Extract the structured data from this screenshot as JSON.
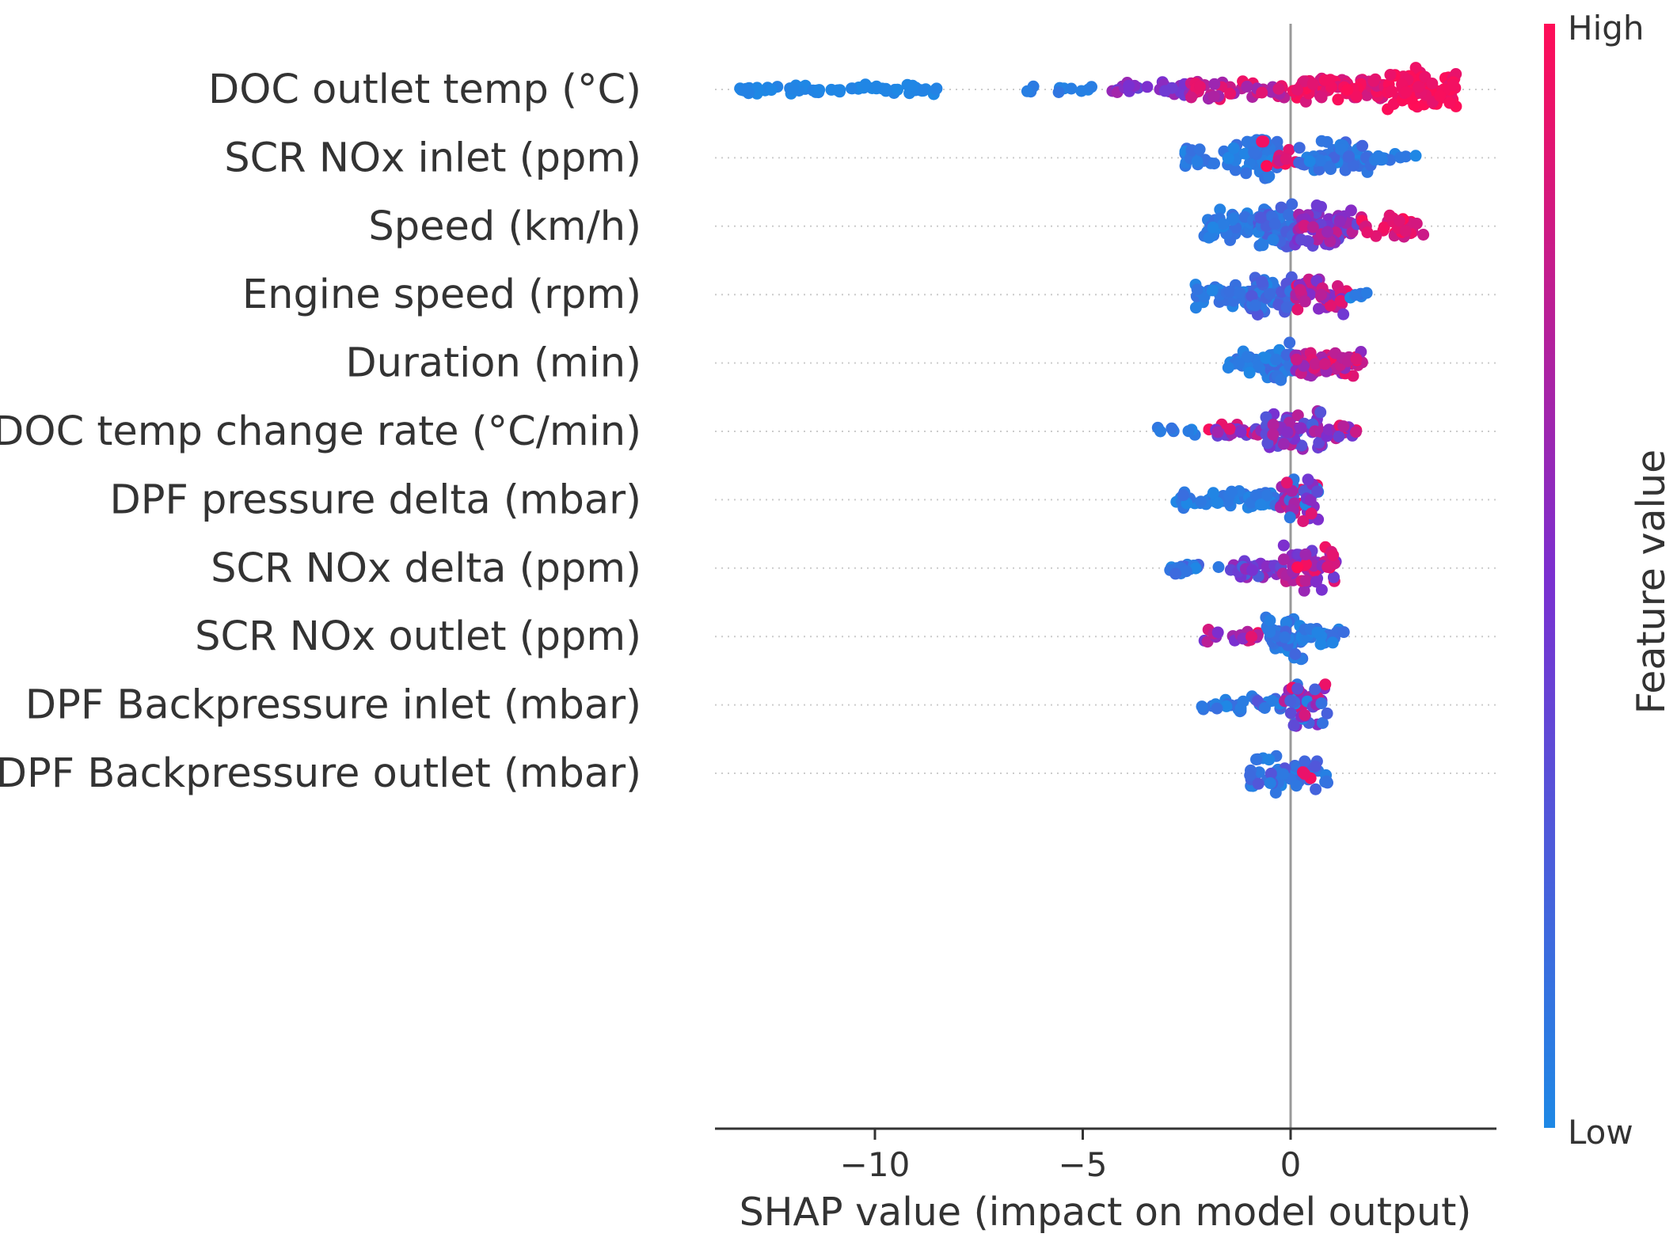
{
  "chart_data": {
    "type": "scatter",
    "subtype": "shap-beeswarm",
    "title": "",
    "xlabel": "SHAP value (impact on model output)",
    "ylabel": "",
    "xlim": [
      -14,
      5
    ],
    "xticks": [
      -10,
      -5,
      0
    ],
    "xtick_labels": [
      "−10",
      "−5",
      "0"
    ],
    "grid": false,
    "zero_line": 0,
    "colorbar": {
      "label": "Feature value",
      "high_label": "High",
      "low_label": "Low",
      "low_color": "#1e88e5",
      "mid_color": "#7b2fd0",
      "high_color": "#ff0d57"
    },
    "features": [
      {
        "name": "DOC outlet temp (°C)",
        "clusters": [
          {
            "min": -13.3,
            "max": -8.5,
            "n": 70,
            "spread": 0.2,
            "f": [
              0.0,
              0.04
            ]
          },
          {
            "min": -6.4,
            "max": -4.6,
            "n": 10,
            "spread": 0.15,
            "f": [
              0.02,
              0.1
            ]
          },
          {
            "min": -4.4,
            "max": -2.4,
            "n": 26,
            "spread": 0.35,
            "f": [
              0.35,
              0.7
            ]
          },
          {
            "min": -2.4,
            "max": -0.1,
            "n": 40,
            "spread": 0.45,
            "f": [
              0.55,
              0.95
            ]
          },
          {
            "min": -0.1,
            "max": 2.3,
            "n": 80,
            "spread": 0.55,
            "f": [
              0.8,
              1.0
            ]
          },
          {
            "min": 2.3,
            "max": 4.0,
            "n": 95,
            "spread": 0.85,
            "f": [
              0.9,
              1.0
            ]
          }
        ]
      },
      {
        "name": "SCR NOx inlet (ppm)",
        "clusters": [
          {
            "min": -2.6,
            "max": -1.1,
            "n": 30,
            "spread": 0.5,
            "f": [
              0.0,
              0.15
            ]
          },
          {
            "min": -1.1,
            "max": -0.3,
            "n": 55,
            "spread": 0.85,
            "f": [
              0.0,
              0.15
            ]
          },
          {
            "min": -0.7,
            "max": -0.3,
            "n": 4,
            "spread": 0.8,
            "f": [
              0.9,
              1.0
            ]
          },
          {
            "min": -0.3,
            "max": 0.2,
            "n": 8,
            "spread": 0.4,
            "f": [
              0.7,
              1.0
            ]
          },
          {
            "min": 0.2,
            "max": 1.9,
            "n": 55,
            "spread": 0.65,
            "f": [
              0.0,
              0.2
            ]
          },
          {
            "min": 1.9,
            "max": 3.1,
            "n": 12,
            "spread": 0.3,
            "f": [
              0.0,
              0.15
            ]
          }
        ]
      },
      {
        "name": "Speed (km/h)",
        "clusters": [
          {
            "min": -2.1,
            "max": -0.8,
            "n": 45,
            "spread": 0.65,
            "f": [
              0.0,
              0.15
            ]
          },
          {
            "min": -0.8,
            "max": 0.1,
            "n": 70,
            "spread": 0.9,
            "f": [
              0.0,
              0.3
            ]
          },
          {
            "min": 0.1,
            "max": 1.6,
            "n": 65,
            "spread": 0.85,
            "f": [
              0.3,
              0.85
            ]
          },
          {
            "min": 1.6,
            "max": 3.2,
            "n": 30,
            "spread": 0.45,
            "f": [
              0.8,
              1.0
            ]
          }
        ]
      },
      {
        "name": "Engine speed (rpm)",
        "clusters": [
          {
            "min": -2.3,
            "max": -1.0,
            "n": 30,
            "spread": 0.55,
            "f": [
              0.0,
              0.15
            ]
          },
          {
            "min": -1.0,
            "max": 0.1,
            "n": 65,
            "spread": 0.85,
            "f": [
              0.0,
              0.3
            ]
          },
          {
            "min": 0.1,
            "max": 1.4,
            "n": 45,
            "spread": 0.75,
            "f": [
              0.4,
              0.95
            ]
          },
          {
            "min": 1.4,
            "max": 1.9,
            "n": 5,
            "spread": 0.15,
            "f": [
              0.0,
              0.15
            ]
          }
        ]
      },
      {
        "name": "Duration (min)",
        "clusters": [
          {
            "min": -1.5,
            "max": -0.6,
            "n": 20,
            "spread": 0.45,
            "f": [
              0.0,
              0.15
            ]
          },
          {
            "min": -0.6,
            "max": 0.1,
            "n": 45,
            "spread": 0.85,
            "f": [
              0.0,
              0.2
            ]
          },
          {
            "min": 0.1,
            "max": 1.8,
            "n": 65,
            "spread": 0.5,
            "f": [
              0.55,
              1.0
            ]
          }
        ]
      },
      {
        "name": "DOC temp change rate (°C/min)",
        "clusters": [
          {
            "min": -3.4,
            "max": -2.3,
            "n": 8,
            "spread": 0.2,
            "f": [
              0.0,
              0.15
            ]
          },
          {
            "min": -2.0,
            "max": -0.6,
            "n": 25,
            "spread": 0.3,
            "f": [
              0.35,
              1.0
            ]
          },
          {
            "min": -0.6,
            "max": 0.8,
            "n": 60,
            "spread": 0.85,
            "f": [
              0.2,
              0.75
            ]
          },
          {
            "min": 0.8,
            "max": 1.6,
            "n": 15,
            "spread": 0.3,
            "f": [
              0.4,
              1.0
            ]
          }
        ]
      },
      {
        "name": "DPF pressure delta (mbar)",
        "clusters": [
          {
            "min": -2.8,
            "max": -0.3,
            "n": 55,
            "spread": 0.35,
            "f": [
              0.0,
              0.15
            ]
          },
          {
            "min": -0.3,
            "max": 0.7,
            "n": 45,
            "spread": 0.9,
            "f": [
              0.0,
              0.95
            ]
          }
        ]
      },
      {
        "name": "SCR NOx delta (ppm)",
        "clusters": [
          {
            "min": -3.0,
            "max": -1.5,
            "n": 18,
            "spread": 0.25,
            "f": [
              0.0,
              0.25
            ]
          },
          {
            "min": -1.5,
            "max": -0.2,
            "n": 35,
            "spread": 0.4,
            "f": [
              0.2,
              0.65
            ]
          },
          {
            "min": -0.2,
            "max": 1.1,
            "n": 60,
            "spread": 0.9,
            "f": [
              0.4,
              1.0
            ]
          }
        ]
      },
      {
        "name": "SCR NOx outlet (ppm)",
        "clusters": [
          {
            "min": -2.1,
            "max": -0.6,
            "n": 18,
            "spread": 0.3,
            "f": [
              0.45,
              1.0
            ]
          },
          {
            "min": -0.6,
            "max": 0.3,
            "n": 50,
            "spread": 0.9,
            "f": [
              0.0,
              0.2
            ]
          },
          {
            "min": 0.3,
            "max": 1.3,
            "n": 25,
            "spread": 0.4,
            "f": [
              0.0,
              0.15
            ]
          }
        ]
      },
      {
        "name": "DPF Backpressure inlet (mbar)",
        "clusters": [
          {
            "min": -2.4,
            "max": -1.1,
            "n": 15,
            "spread": 0.3,
            "f": [
              0.0,
              0.15
            ]
          },
          {
            "min": -1.1,
            "max": -0.2,
            "n": 12,
            "spread": 0.35,
            "f": [
              0.0,
              0.3
            ]
          },
          {
            "min": -0.2,
            "max": 0.9,
            "n": 40,
            "spread": 0.85,
            "f": [
              0.0,
              1.0
            ]
          }
        ]
      },
      {
        "name": "DPF Backpressure outlet (mbar)",
        "clusters": [
          {
            "min": -1.0,
            "max": 0.9,
            "n": 55,
            "spread": 0.8,
            "f": [
              0.0,
              0.3
            ]
          },
          {
            "min": 0.2,
            "max": 0.5,
            "n": 3,
            "spread": 0.3,
            "f": [
              0.9,
              1.0
            ]
          }
        ]
      }
    ]
  }
}
